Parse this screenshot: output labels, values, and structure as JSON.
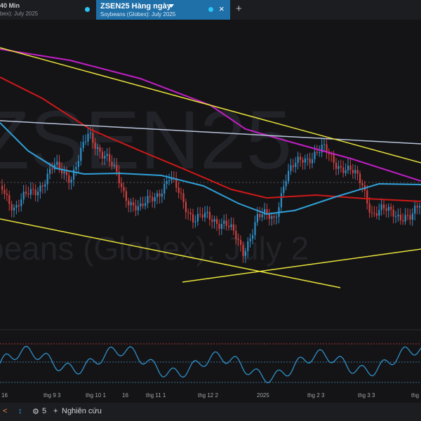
{
  "header": {
    "interval": "40 Min",
    "subtitle_left": "bex): July 2025",
    "add": "+"
  },
  "tab": {
    "title": "ZSEN25 Hàng ngày",
    "subtitle": "Soybeans (Globex): July 2025",
    "close": "×"
  },
  "watermark": {
    "symbol": "ZSEN25",
    "description": "beans (Globex): July 2"
  },
  "x_axis": [
    "16",
    "thg 9 3",
    "thg 10 1",
    "16",
    "thg 11 1",
    "thg 12 2",
    "2025",
    "thg 2 3",
    "thg 3 3",
    "thg"
  ],
  "toolbar": {
    "studies_count": "5",
    "research": "Nghiên cứu"
  }
}
